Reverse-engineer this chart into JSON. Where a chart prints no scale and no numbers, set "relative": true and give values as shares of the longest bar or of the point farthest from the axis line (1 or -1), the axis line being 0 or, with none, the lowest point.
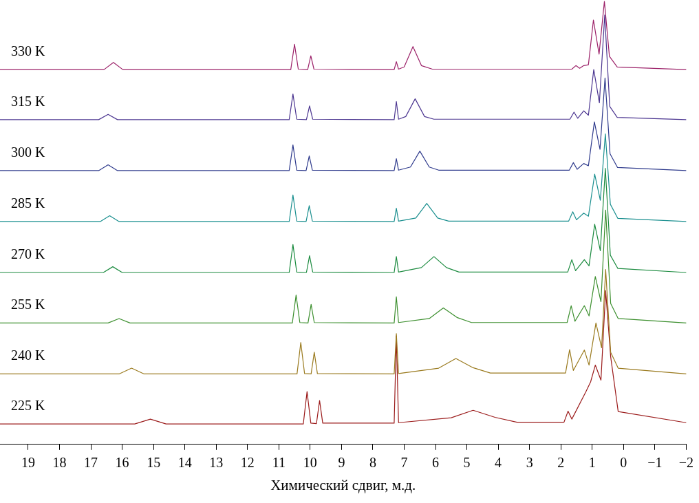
{
  "chart_data": {
    "type": "line",
    "relative": true,
    "xlabel": "Химический сдвиг, м.д.",
    "xlim": [
      19.9,
      -2
    ],
    "xticks": [
      19,
      18,
      17,
      16,
      15,
      14,
      13,
      12,
      11,
      10,
      9,
      8,
      7,
      6,
      5,
      4,
      3,
      2,
      1,
      0,
      {
        "value": -1,
        "label": "−1"
      },
      {
        "value": -2,
        "label": "−2"
      }
    ],
    "tick_labels": "x",
    "grid": false,
    "legend": false,
    "marker": "none",
    "line_style": "solid",
    "series": [
      {
        "name": "330 K",
        "color": "#9b2068",
        "x": [
          19.9,
          16.58,
          16.28,
          15.98,
          10.62,
          10.5,
          10.38,
          10.08,
          9.98,
          9.88,
          7.32,
          7.25,
          7.18,
          7.0,
          6.72,
          6.45,
          6.1,
          1.65,
          1.52,
          1.4,
          1.27,
          1.12,
          0.96,
          0.78,
          0.61,
          0.45,
          0.2,
          -2
        ],
        "values": [
          0.846,
          0.846,
          0.862,
          0.846,
          0.846,
          0.903,
          0.847,
          0.846,
          0.877,
          0.847,
          0.846,
          0.864,
          0.847,
          0.852,
          0.898,
          0.855,
          0.847,
          0.847,
          0.855,
          0.849,
          0.855,
          0.857,
          0.958,
          0.881,
          1,
          0.876,
          0.852,
          0.846
        ]
      },
      {
        "name": "315 K",
        "color": "#4b3590",
        "x": [
          19.9,
          16.75,
          16.45,
          16.15,
          10.67,
          10.55,
          10.43,
          10.12,
          10.02,
          9.92,
          7.32,
          7.25,
          7.18,
          6.95,
          6.65,
          6.35,
          6.05,
          1.71,
          1.58,
          1.46,
          1.27,
          1.12,
          0.95,
          0.77,
          0.6,
          0.44,
          0.2,
          -2
        ],
        "values": [
          0.733,
          0.733,
          0.745,
          0.733,
          0.733,
          0.791,
          0.734,
          0.733,
          0.764,
          0.734,
          0.733,
          0.774,
          0.734,
          0.74,
          0.78,
          0.74,
          0.734,
          0.734,
          0.75,
          0.736,
          0.753,
          0.743,
          0.846,
          0.771,
          0.969,
          0.763,
          0.738,
          0.733
        ]
      },
      {
        "name": "300 K",
        "color": "#2e3a8c",
        "x": [
          19.9,
          16.75,
          16.45,
          16.15,
          10.67,
          10.55,
          10.43,
          10.13,
          10.03,
          9.93,
          7.32,
          7.25,
          7.18,
          6.8,
          6.5,
          6.2,
          5.9,
          1.73,
          1.6,
          1.48,
          1.27,
          1.12,
          0.93,
          0.75,
          0.59,
          0.43,
          0.19,
          -2
        ],
        "values": [
          0.618,
          0.618,
          0.631,
          0.618,
          0.618,
          0.676,
          0.619,
          0.618,
          0.651,
          0.619,
          0.618,
          0.645,
          0.619,
          0.626,
          0.662,
          0.626,
          0.619,
          0.619,
          0.636,
          0.621,
          0.634,
          0.629,
          0.728,
          0.666,
          0.827,
          0.656,
          0.625,
          0.618
        ]
      },
      {
        "name": "285 K",
        "color": "#1a8f8f",
        "x": [
          19.9,
          16.7,
          16.4,
          16.1,
          10.67,
          10.55,
          10.43,
          10.13,
          10.03,
          9.93,
          7.32,
          7.25,
          7.18,
          6.63,
          6.28,
          5.93,
          5.58,
          1.75,
          1.62,
          1.5,
          1.27,
          1.12,
          0.92,
          0.74,
          0.58,
          0.42,
          0.18,
          -2
        ],
        "values": [
          0.503,
          0.503,
          0.516,
          0.503,
          0.503,
          0.563,
          0.504,
          0.503,
          0.539,
          0.504,
          0.503,
          0.533,
          0.504,
          0.511,
          0.544,
          0.511,
          0.504,
          0.504,
          0.525,
          0.507,
          0.522,
          0.515,
          0.61,
          0.551,
          0.701,
          0.542,
          0.51,
          0.503
        ]
      },
      {
        "name": "270 K",
        "color": "#1a8a3e",
        "x": [
          19.9,
          16.6,
          16.3,
          16.0,
          10.67,
          10.55,
          10.43,
          10.12,
          10.02,
          9.92,
          7.32,
          7.25,
          7.18,
          6.45,
          6.05,
          5.65,
          5.25,
          1.78,
          1.65,
          1.53,
          1.25,
          1.1,
          0.92,
          0.74,
          0.58,
          0.42,
          0.18,
          -2
        ],
        "values": [
          0.388,
          0.388,
          0.401,
          0.388,
          0.388,
          0.451,
          0.389,
          0.388,
          0.426,
          0.389,
          0.388,
          0.424,
          0.389,
          0.399,
          0.424,
          0.399,
          0.389,
          0.389,
          0.417,
          0.392,
          0.417,
          0.403,
          0.497,
          0.437,
          0.623,
          0.427,
          0.397,
          0.388
        ]
      },
      {
        "name": "255 K",
        "color": "#3c8f2e",
        "x": [
          19.9,
          16.45,
          16.1,
          15.75,
          10.57,
          10.45,
          10.33,
          10.07,
          9.97,
          9.87,
          7.32,
          7.25,
          7.18,
          6.2,
          5.75,
          5.3,
          4.85,
          1.8,
          1.67,
          1.55,
          1.25,
          1.1,
          0.9,
          0.72,
          0.57,
          0.41,
          0.17,
          -2
        ],
        "values": [
          0.274,
          0.274,
          0.284,
          0.274,
          0.274,
          0.337,
          0.275,
          0.274,
          0.316,
          0.275,
          0.274,
          0.333,
          0.275,
          0.284,
          0.308,
          0.286,
          0.275,
          0.275,
          0.313,
          0.278,
          0.313,
          0.29,
          0.379,
          0.322,
          0.529,
          0.318,
          0.284,
          0.274
        ]
      },
      {
        "name": "240 K",
        "color": "#9a7a1e",
        "x": [
          19.9,
          16.1,
          15.7,
          15.3,
          10.42,
          10.3,
          10.18,
          9.97,
          9.87,
          9.77,
          7.32,
          7.25,
          7.18,
          5.9,
          5.35,
          4.8,
          4.25,
          1.85,
          1.72,
          1.6,
          1.25,
          1.1,
          0.88,
          0.7,
          0.57,
          0.41,
          0.17,
          -2
        ],
        "values": [
          0.159,
          0.159,
          0.172,
          0.159,
          0.159,
          0.23,
          0.16,
          0.159,
          0.208,
          0.16,
          0.159,
          0.25,
          0.16,
          0.172,
          0.194,
          0.173,
          0.161,
          0.161,
          0.214,
          0.167,
          0.213,
          0.179,
          0.274,
          0.218,
          0.395,
          0.208,
          0.172,
          0.159
        ]
      },
      {
        "name": "225 K",
        "color": "#9b1b1b",
        "x": [
          19.9,
          15.6,
          15.1,
          14.6,
          10.22,
          10.1,
          9.98,
          9.8,
          9.7,
          9.6,
          7.32,
          7.25,
          7.18,
          5.5,
          4.8,
          4.1,
          3.4,
          1.9,
          1.77,
          1.65,
          1.2,
          1.05,
          0.9,
          0.72,
          0.57,
          0.41,
          0.17,
          -2
        ],
        "values": [
          0.046,
          0.046,
          0.057,
          0.046,
          0.046,
          0.119,
          0.048,
          0.047,
          0.099,
          0.048,
          0.048,
          0.245,
          0.049,
          0.06,
          0.077,
          0.061,
          0.05,
          0.05,
          0.075,
          0.057,
          0.119,
          0.141,
          0.179,
          0.145,
          0.347,
          0.198,
          0.074,
          0.049
        ]
      }
    ]
  }
}
